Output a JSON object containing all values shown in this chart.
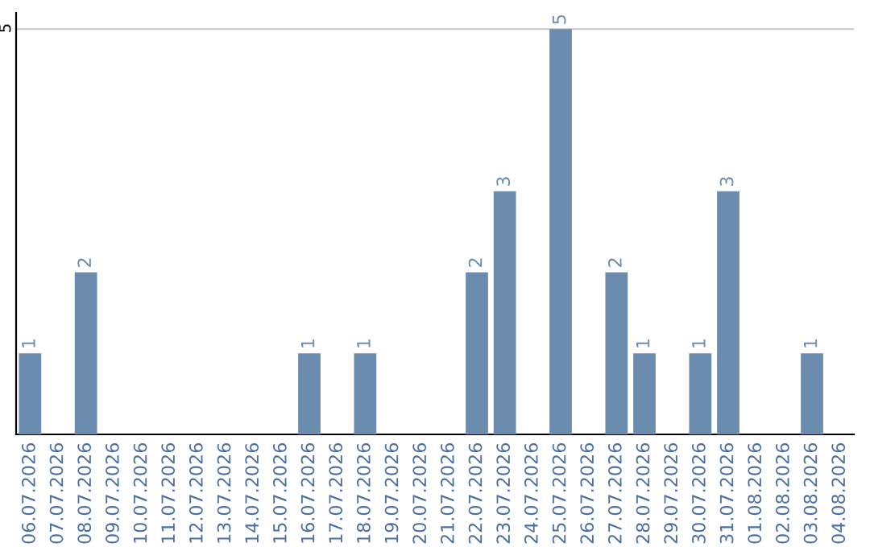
{
  "chart_data": {
    "type": "bar",
    "categories": [
      "06.07.2026",
      "07.07.2026",
      "08.07.2026",
      "09.07.2026",
      "10.07.2026",
      "11.07.2026",
      "12.07.2026",
      "13.07.2026",
      "14.07.2026",
      "15.07.2026",
      "16.07.2026",
      "17.07.2026",
      "18.07.2026",
      "19.07.2026",
      "20.07.2026",
      "21.07.2026",
      "22.07.2026",
      "23.07.2026",
      "24.07.2026",
      "25.07.2026",
      "26.07.2026",
      "27.07.2026",
      "28.07.2026",
      "29.07.2026",
      "30.07.2026",
      "31.07.2026",
      "01.08.2026",
      "02.08.2026",
      "03.08.2026",
      "04.08.2026"
    ],
    "values": [
      1,
      0,
      2,
      0,
      0,
      0,
      0,
      0,
      0,
      0,
      1,
      0,
      1,
      0,
      0,
      0,
      2,
      3,
      0,
      5,
      0,
      2,
      1,
      0,
      1,
      3,
      0,
      0,
      1,
      0
    ],
    "value_labels": [
      "1",
      null,
      "2",
      null,
      null,
      null,
      null,
      null,
      null,
      null,
      "1",
      null,
      "1",
      null,
      null,
      null,
      "2",
      "3",
      null,
      "5",
      null,
      "2",
      "1",
      null,
      "1",
      "3",
      null,
      null,
      "1",
      null
    ],
    "color": "#6b8cae",
    "ylim": [
      0,
      5.2
    ],
    "yticks": [
      5
    ],
    "grid": "y",
    "legend": false
  }
}
